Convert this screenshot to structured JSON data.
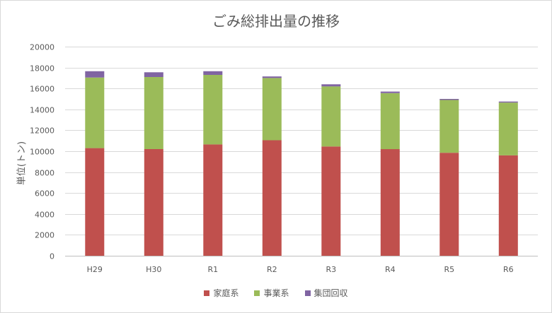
{
  "chart_data": {
    "type": "bar",
    "stacked": true,
    "title": "ごみ総排出量の推移",
    "ylabel": "単位(トン)",
    "xlabel": "",
    "ylim": [
      0,
      20000
    ],
    "yticks": [
      0,
      2000,
      4000,
      6000,
      8000,
      10000,
      12000,
      14000,
      16000,
      18000,
      20000
    ],
    "grid": true,
    "legend_position": "bottom",
    "categories": [
      "H29",
      "H30",
      "R1",
      "R2",
      "R3",
      "R4",
      "R5",
      "R6"
    ],
    "series": [
      {
        "name": "家庭系",
        "color": "#c0504d",
        "values": [
          10300,
          10200,
          10650,
          11050,
          10450,
          10200,
          9850,
          9600
        ]
      },
      {
        "name": "事業系",
        "color": "#9bbb59",
        "values": [
          6750,
          6900,
          6650,
          5950,
          5750,
          5350,
          5050,
          5050
        ]
      },
      {
        "name": "集団回収",
        "color": "#8064a2",
        "values": [
          600,
          450,
          350,
          150,
          200,
          150,
          100,
          100
        ]
      }
    ]
  }
}
